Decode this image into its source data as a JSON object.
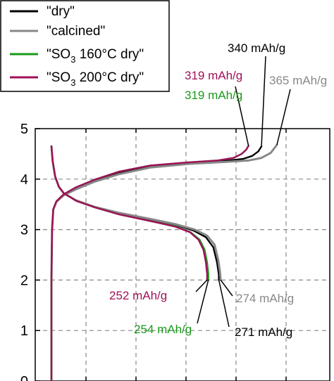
{
  "chart_data": {
    "type": "line",
    "title": "",
    "xlabel": "",
    "ylabel": "",
    "xlim": [
      0,
      365
    ],
    "ylim": [
      0,
      5
    ],
    "y_ticks": [
      "0",
      "1",
      "2",
      "3",
      "4",
      "5"
    ],
    "grid": true,
    "legend_position": "top-left",
    "legend": [
      {
        "label": "\"dry\"",
        "color": "#000000"
      },
      {
        "label": "\"calcined\"",
        "color": "#888888"
      },
      {
        "label_parts": [
          "\"SO",
          "3",
          " 160°C dry\""
        ],
        "color": "#1a9a1a"
      },
      {
        "label_parts": [
          "\"SO",
          "3",
          " 200°C dry\""
        ],
        "color": "#a0105a"
      }
    ],
    "series": [
      {
        "color": "#000000",
        "discharge": {
          "x": [
            0,
            2,
            6,
            12,
            20,
            40,
            70,
            110,
            160,
            200,
            230,
            250,
            262,
            268,
            271,
            271
          ],
          "y": [
            4.65,
            4.35,
            4.05,
            3.85,
            3.72,
            3.58,
            3.45,
            3.32,
            3.2,
            3.1,
            2.98,
            2.85,
            2.65,
            2.35,
            2.1,
            2.0
          ]
        },
        "charge": {
          "x": [
            0,
            0,
            0,
            1,
            3,
            8,
            20,
            40,
            70,
            110,
            160,
            220,
            280,
            310,
            325,
            335,
            340
          ],
          "y": [
            0.0,
            1.0,
            2.0,
            3.0,
            3.4,
            3.55,
            3.68,
            3.8,
            3.96,
            4.12,
            4.25,
            4.32,
            4.36,
            4.4,
            4.46,
            4.55,
            4.65
          ]
        }
      },
      {
        "color": "#888888",
        "discharge": {
          "x": [
            0,
            2,
            6,
            12,
            20,
            40,
            70,
            110,
            160,
            200,
            232,
            252,
            264,
            270,
            273,
            274
          ],
          "y": [
            4.65,
            4.35,
            4.05,
            3.85,
            3.72,
            3.58,
            3.45,
            3.33,
            3.21,
            3.11,
            3.0,
            2.88,
            2.7,
            2.4,
            2.15,
            2.0
          ]
        },
        "charge": {
          "x": [
            0,
            0,
            0,
            1,
            3,
            8,
            20,
            40,
            70,
            110,
            160,
            220,
            280,
            320,
            340,
            355,
            365
          ],
          "y": [
            0.0,
            1.0,
            2.0,
            3.0,
            3.4,
            3.55,
            3.68,
            3.8,
            3.95,
            4.1,
            4.23,
            4.3,
            4.34,
            4.37,
            4.42,
            4.52,
            4.68
          ]
        }
      },
      {
        "color": "#1a9a1a",
        "discharge": {
          "x": [
            0,
            2,
            6,
            12,
            20,
            40,
            70,
            110,
            160,
            200,
            225,
            240,
            248,
            252,
            254,
            254
          ],
          "y": [
            4.65,
            4.35,
            4.05,
            3.85,
            3.72,
            3.57,
            3.44,
            3.3,
            3.17,
            3.07,
            2.95,
            2.8,
            2.6,
            2.35,
            2.12,
            2.0
          ]
        },
        "charge": {
          "x": [
            0,
            0,
            0,
            1,
            3,
            8,
            20,
            40,
            70,
            110,
            160,
            220,
            270,
            295,
            308,
            315,
            319
          ],
          "y": [
            0.0,
            1.0,
            2.0,
            3.0,
            3.4,
            3.56,
            3.7,
            3.84,
            3.99,
            4.15,
            4.27,
            4.33,
            4.37,
            4.42,
            4.5,
            4.58,
            4.66
          ]
        }
      },
      {
        "color": "#a0105a",
        "discharge": {
          "x": [
            0,
            2,
            6,
            12,
            20,
            40,
            70,
            110,
            160,
            200,
            224,
            238,
            246,
            250,
            252,
            252
          ],
          "y": [
            4.65,
            4.35,
            4.05,
            3.85,
            3.72,
            3.57,
            3.44,
            3.3,
            3.17,
            3.06,
            2.95,
            2.8,
            2.6,
            2.35,
            2.12,
            2.0
          ]
        },
        "charge": {
          "x": [
            0,
            0,
            0,
            1,
            3,
            8,
            20,
            40,
            70,
            110,
            160,
            220,
            270,
            295,
            308,
            315,
            319
          ],
          "y": [
            0.0,
            1.0,
            2.0,
            3.0,
            3.4,
            3.56,
            3.7,
            3.84,
            3.99,
            4.15,
            4.27,
            4.33,
            4.37,
            4.42,
            4.5,
            4.58,
            4.66
          ]
        }
      }
    ],
    "annotations": [
      {
        "text": "340 mAh/g",
        "color": "#000000",
        "point": [
          340,
          4.65
        ]
      },
      {
        "text": "365 mAh/g",
        "color": "#888888",
        "point": [
          365,
          4.68
        ]
      },
      {
        "text": "319 mAh/g",
        "color": "#a0105a",
        "point": [
          319,
          4.66
        ]
      },
      {
        "text": "319 mAh/g",
        "color": "#1a9a1a",
        "point": [
          319,
          4.66
        ]
      },
      {
        "text": "252 mAh/g",
        "color": "#a0105a",
        "point": [
          252,
          2.0
        ]
      },
      {
        "text": "254 mAh/g",
        "color": "#1a9a1a",
        "point": [
          254,
          2.0
        ]
      },
      {
        "text": "274 mAh/g",
        "color": "#888888",
        "point": [
          274,
          2.0
        ]
      },
      {
        "text": "271 mAh/g",
        "color": "#000000",
        "point": [
          271,
          2.0
        ]
      }
    ]
  }
}
